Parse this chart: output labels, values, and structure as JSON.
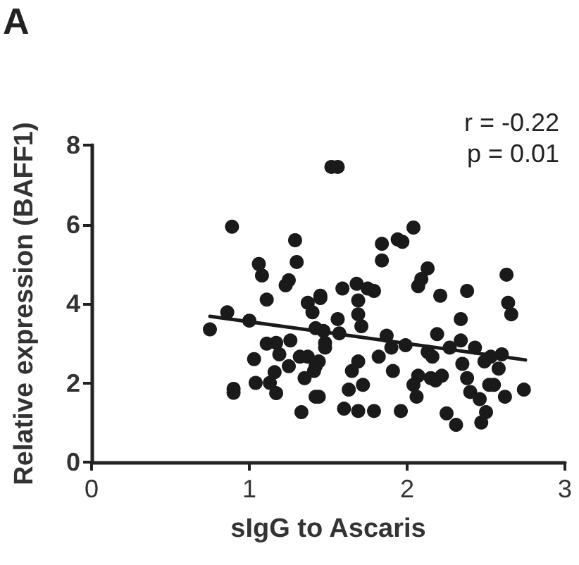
{
  "chart_data": {
    "type": "scatter",
    "xlabel": "sIgG to Ascaris",
    "ylabel": "Relative expression (BAFF1)",
    "annotations": [
      "A",
      "r = -0.22",
      "p = 0.01"
    ],
    "xlim": [
      0,
      3
    ],
    "xticks": [
      0,
      1,
      2,
      3
    ],
    "ylim": [
      0,
      8
    ],
    "yticks": [
      0,
      2,
      4,
      6,
      8
    ],
    "grid": false,
    "marker": "circle",
    "series": [
      {
        "color": "#1a1a1a",
        "x": [
          0.75,
          0.86,
          0.89,
          0.9,
          0.9,
          1.0,
          1.03,
          1.04,
          1.06,
          1.08,
          1.11,
          1.11,
          1.13,
          1.16,
          1.17,
          1.17,
          1.19,
          1.23,
          1.25,
          1.25,
          1.26,
          1.29,
          1.3,
          1.32,
          1.33,
          1.35,
          1.37,
          1.37,
          1.4,
          1.41,
          1.42,
          1.44,
          1.45,
          1.47,
          1.48,
          1.52,
          1.56,
          1.45,
          1.42,
          1.48,
          1.42,
          1.44,
          1.56,
          1.57,
          1.59,
          1.6,
          1.63,
          1.65,
          1.68,
          1.69,
          1.69,
          1.69,
          1.69,
          1.71,
          1.72,
          1.75,
          1.79,
          1.79,
          1.82,
          1.84,
          1.84,
          1.87,
          1.9,
          1.91,
          1.94,
          1.96,
          1.97,
          1.99,
          2.04,
          2.04,
          2.06,
          2.07,
          2.09,
          2.13,
          2.07,
          2.13,
          2.15,
          2.16,
          2.18,
          2.19,
          2.21,
          2.22,
          2.25,
          2.27,
          2.31,
          2.34,
          2.34,
          2.35,
          2.38,
          2.38,
          2.4,
          2.43,
          2.46,
          2.47,
          2.49,
          2.5,
          2.52,
          2.53,
          2.55,
          2.58,
          2.6,
          2.62,
          2.63,
          2.64,
          2.66,
          2.74
        ],
        "values": [
          3.35,
          3.78,
          5.94,
          1.85,
          1.75,
          3.57,
          2.6,
          2.0,
          5.0,
          4.71,
          4.1,
          2.99,
          2.0,
          2.27,
          1.74,
          3.01,
          2.72,
          4.46,
          4.59,
          2.42,
          3.07,
          5.6,
          5.05,
          2.66,
          1.26,
          2.12,
          4.02,
          2.66,
          3.78,
          2.3,
          1.65,
          2.54,
          4.2,
          3.31,
          2.89,
          7.45,
          7.45,
          4.14,
          3.38,
          3.01,
          2.42,
          1.65,
          3.61,
          3.25,
          4.38,
          1.35,
          1.83,
          2.3,
          4.5,
          4.08,
          3.73,
          2.54,
          1.29,
          3.43,
          1.95,
          4.38,
          4.32,
          1.29,
          2.66,
          5.51,
          5.09,
          3.19,
          2.89,
          2.3,
          5.62,
          1.29,
          5.56,
          2.95,
          5.92,
          1.95,
          1.65,
          4.44,
          4.62,
          4.89,
          2.18,
          2.78,
          2.12,
          2.66,
          2.06,
          3.23,
          4.2,
          2.18,
          1.23,
          2.89,
          0.94,
          3.07,
          3.61,
          2.48,
          4.32,
          2.12,
          1.77,
          2.89,
          1.59,
          1.0,
          2.54,
          1.26,
          1.95,
          2.66,
          1.95,
          2.36,
          2.72,
          1.65,
          4.73,
          4.02,
          3.73,
          1.83
        ]
      },
      {
        "type": "line",
        "color": "#1a1a1a",
        "marker": "none",
        "line_style": "solid",
        "x": [
          0.75,
          2.75
        ],
        "values": [
          3.68,
          2.58
        ]
      }
    ]
  }
}
